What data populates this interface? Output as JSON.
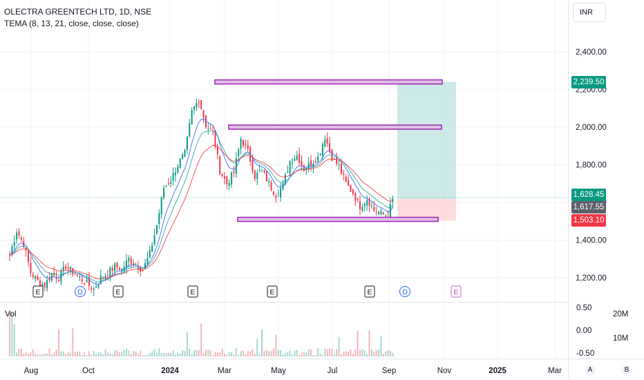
{
  "legend": {
    "title": "OLECTRA GREENTECH LTD, 1D, NSE",
    "indicator": "TEMA (8, 13, 21, close, close, close)"
  },
  "currency": "INR",
  "volume_label": "Vol",
  "price_tags": {
    "target": "2,239.50",
    "last": "1,628.45",
    "entry": "1,617.55",
    "stop": "1,503.10"
  },
  "buttons": {
    "auto": "A",
    "back": "B"
  },
  "event_markers": [
    "E",
    "D",
    "E",
    "E",
    "E",
    "E",
    "D",
    "E"
  ],
  "colors": {
    "up": "#089981",
    "down": "#f23645",
    "zone_border": "#9c27b0",
    "profit_zone": "#b2dfdb",
    "loss_zone": "#ffcdd2",
    "tema_fast": "#2962ff",
    "tema_mid": "#26a69a",
    "tema_slow": "#f23645"
  },
  "chart_data": {
    "type": "candlestick",
    "title": "OLECTRA GREENTECH LTD, 1D, NSE",
    "x_ticks": [
      "Aug",
      "Oct",
      "2024",
      "Mar",
      "May",
      "Jul",
      "Sep",
      "Nov",
      "2025",
      "Mar"
    ],
    "y_ticks": [
      "2,400.00",
      "2,200.00",
      "2,000.00",
      "1,800.00",
      "1,600.00",
      "1,400.00",
      "1,200.00"
    ],
    "ylim": [
      1110,
      2535
    ],
    "volume_ticks_left": [
      "0.50",
      "0.00",
      "-0.50"
    ],
    "volume_ticks_right": [
      "20M",
      "10M"
    ],
    "price_path": [
      [
        0,
        1320
      ],
      [
        3,
        1450
      ],
      [
        6,
        1380
      ],
      [
        9,
        1230
      ],
      [
        12,
        1180
      ],
      [
        15,
        1160
      ],
      [
        18,
        1220
      ],
      [
        21,
        1200
      ],
      [
        24,
        1260
      ],
      [
        27,
        1230
      ],
      [
        30,
        1200
      ],
      [
        33,
        1170
      ],
      [
        36,
        1140
      ],
      [
        39,
        1200
      ],
      [
        42,
        1225
      ],
      [
        45,
        1260
      ],
      [
        48,
        1245
      ],
      [
        51,
        1300
      ],
      [
        54,
        1270
      ],
      [
        57,
        1240
      ],
      [
        60,
        1330
      ],
      [
        63,
        1480
      ],
      [
        66,
        1680
      ],
      [
        69,
        1720
      ],
      [
        72,
        1800
      ],
      [
        75,
        1860
      ],
      [
        78,
        2080
      ],
      [
        81,
        2150
      ],
      [
        84,
        2010
      ],
      [
        87,
        1970
      ],
      [
        90,
        1770
      ],
      [
        93,
        1700
      ],
      [
        96,
        1760
      ],
      [
        99,
        1940
      ],
      [
        102,
        1870
      ],
      [
        105,
        1740
      ],
      [
        108,
        1770
      ],
      [
        111,
        1700
      ],
      [
        114,
        1640
      ],
      [
        117,
        1690
      ],
      [
        120,
        1820
      ],
      [
        123,
        1850
      ],
      [
        126,
        1780
      ],
      [
        129,
        1810
      ],
      [
        132,
        1840
      ],
      [
        135,
        1950
      ],
      [
        138,
        1840
      ],
      [
        141,
        1790
      ],
      [
        144,
        1700
      ],
      [
        147,
        1650
      ],
      [
        150,
        1580
      ],
      [
        153,
        1620
      ],
      [
        156,
        1560
      ],
      [
        159,
        1540
      ],
      [
        162,
        1530
      ],
      [
        164,
        1620
      ]
    ],
    "horizontal_zones": [
      {
        "price": 2240
      },
      {
        "price": 2000
      },
      {
        "price": 1510
      }
    ],
    "position": {
      "type": "long",
      "entry": 1617.55,
      "target": 2239.5,
      "stop": 1503.1
    }
  }
}
